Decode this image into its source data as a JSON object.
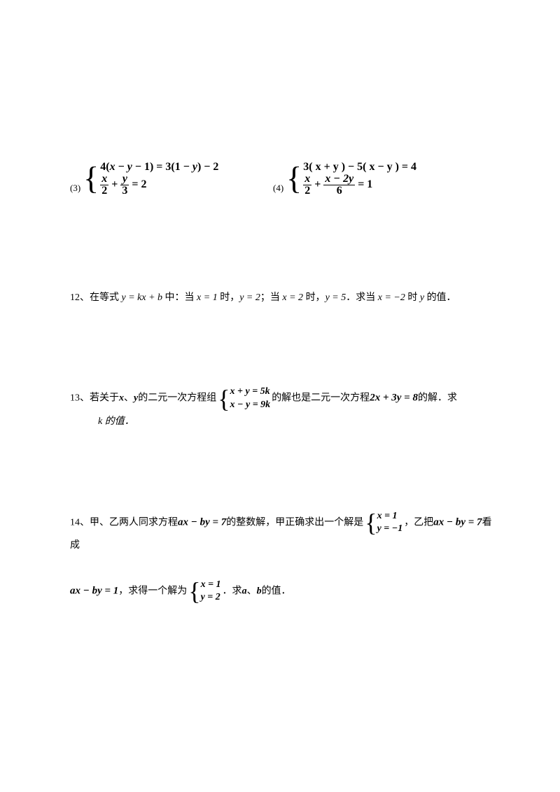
{
  "equations": {
    "eq3": {
      "num": "(3)",
      "line1_parts": [
        "4(",
        "x",
        " − ",
        "y",
        " − 1) = 3(1 − ",
        "y",
        ") − 2"
      ],
      "line2_frac1_num": "x",
      "line2_frac1_den": "2",
      "line2_plus": " + ",
      "line2_frac2_num": "y",
      "line2_frac2_den": "3",
      "line2_rhs": " = 2"
    },
    "eq4": {
      "num": "(4)",
      "line1": "3( x + y ) − 5( x − y ) = 4",
      "line2_frac1_num": "x",
      "line2_frac1_den": "2",
      "line2_plus": " + ",
      "line2_frac2_num": "x − 2y",
      "line2_frac2_den": "6",
      "line2_rhs": " = 1"
    }
  },
  "q12": {
    "num": "12、",
    "t1": "在等式 ",
    "eqn": "y = kx + b",
    "t2": " 中：当 ",
    "c1": "x = 1",
    "t3": " 时，",
    "c2": "y = 2",
    "t4": "；当 ",
    "c3": "x = 2",
    "t5": " 时，",
    "c4": "y = 5",
    "t6": "．求当 ",
    "c5": "x = −2",
    "t7": " 时 ",
    "var": "y",
    "t8": " 的值．"
  },
  "q13": {
    "num": "13、",
    "t1": "若关于",
    "x": "x",
    "dot": "、",
    "y": "y",
    "t2": "的二元一次方程组",
    "sys_l1": "x  +  y  =  5k",
    "sys_l2": "x  −  y  =  9k",
    "t3": "的解也是二元一次方程",
    "eq": "2x + 3y = 8",
    "t4": "的解．求",
    "t5": "k 的值．"
  },
  "q14": {
    "num": "14、",
    "t1": "甲、乙两人同求方程",
    "eq1": "ax − by = 7",
    "t2": "的整数解，甲正确求出一个解是",
    "sol1_l1": "x = 1",
    "sol1_l2": "y = −1",
    "t3": "，乙把",
    "eq2": "ax − by = 7",
    "t4": "看成",
    "eq3": "ax − by = 1",
    "t5": "，求得一个解为",
    "sol2_l1": "x = 1",
    "sol2_l2": "y = 2",
    "t6": "．求",
    "a": "a",
    "dot": "、",
    "b": "b",
    "t7": "的值．"
  }
}
